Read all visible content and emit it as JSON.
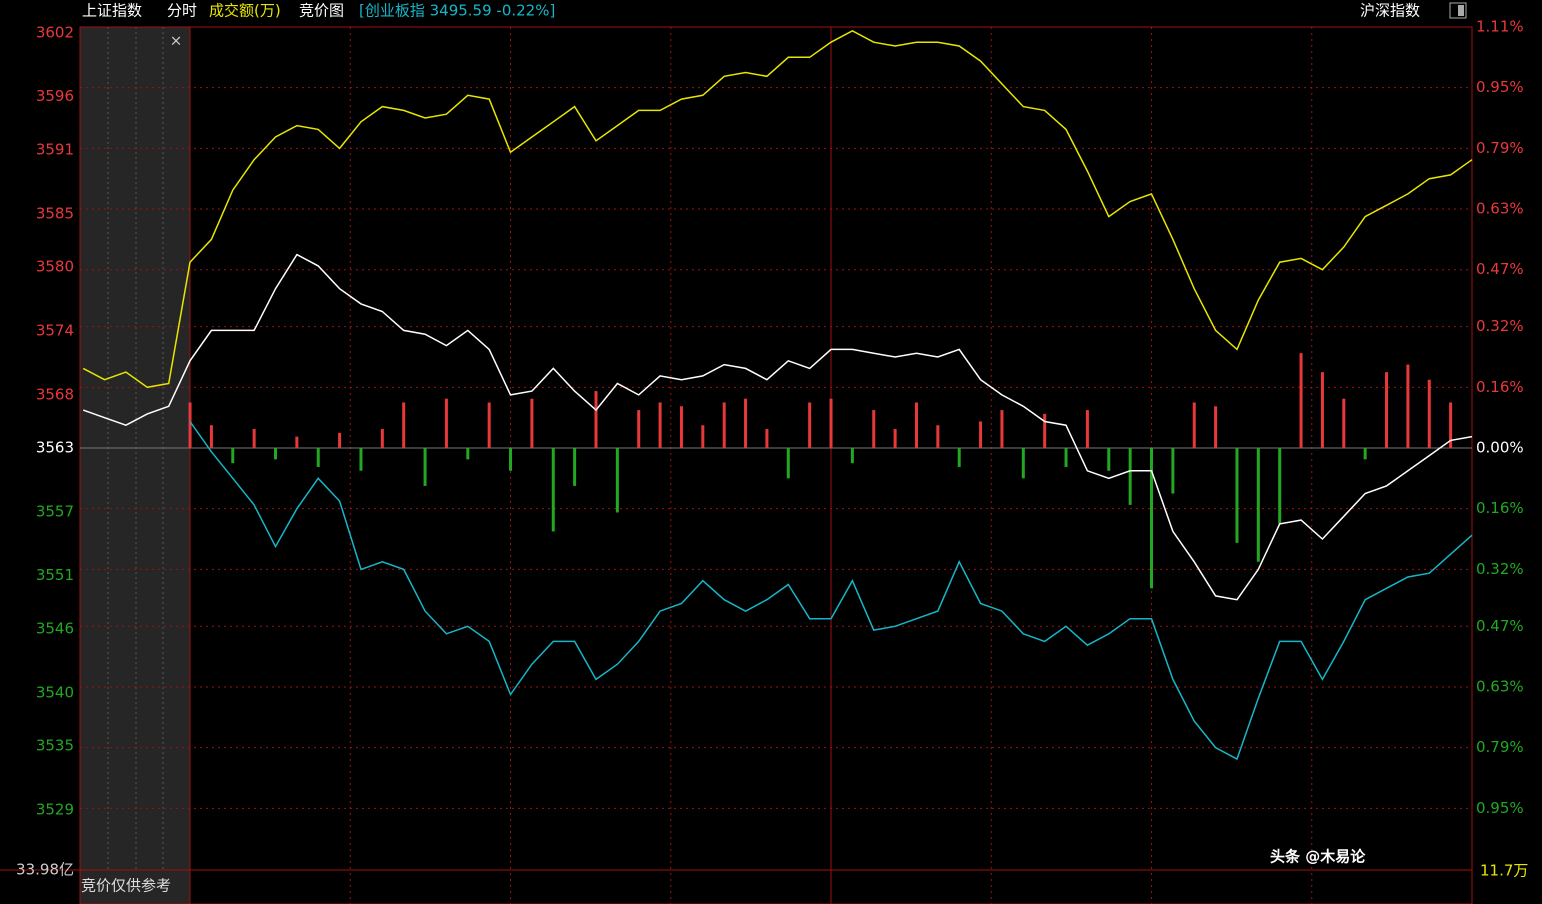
{
  "chart_data": {
    "type": "line",
    "header": {
      "index_name": "上证指数",
      "mode": "分时",
      "volume_label": "成交额(万)",
      "auction_label": "竞价图",
      "compare": "[创业板指 3495.59 -0.22%]",
      "switch": "沪深指数"
    },
    "volume_total": "33.98亿",
    "auction_note": "竞价仅供参考",
    "watermark": "头条 @木易论",
    "corner_label": "11.7万",
    "x": [
      -20,
      -16,
      -12,
      -8,
      -4,
      0,
      4,
      8,
      12,
      16,
      20,
      24,
      28,
      32,
      36,
      40,
      44,
      48,
      52,
      56,
      60,
      64,
      68,
      72,
      76,
      80,
      84,
      88,
      92,
      96,
      100,
      104,
      108,
      112,
      116,
      120,
      124,
      128,
      132,
      136,
      140,
      144,
      148,
      152,
      156,
      160,
      164,
      168,
      172,
      176,
      180,
      184,
      188,
      192,
      196,
      200,
      204,
      208,
      212,
      216,
      220,
      224,
      228,
      232,
      236,
      240
    ],
    "xlim": [
      -20.6,
      240
    ],
    "xticks": [
      30,
      60,
      90,
      120,
      150,
      180,
      210
    ],
    "ylim": [
      3523.45,
      3602.55
    ],
    "yticks": [
      3602,
      3596,
      3591,
      3585,
      3580,
      3574,
      3568,
      3563,
      3557,
      3551,
      3546,
      3540,
      3535,
      3529
    ],
    "y2lim": [
      -1.11,
      1.11
    ],
    "y2ticks": [
      {
        "value": 1.11,
        "label": "1.11%"
      },
      {
        "value": 0.95,
        "label": "0.95%"
      },
      {
        "value": 0.79,
        "label": "0.79%"
      },
      {
        "value": 0.63,
        "label": "0.63%"
      },
      {
        "value": 0.47,
        "label": "0.47%"
      },
      {
        "value": 0.32,
        "label": "0.32%"
      },
      {
        "value": 0.16,
        "label": "0.16%"
      },
      {
        "value": 0,
        "label": "0.00%"
      },
      {
        "value": -0.16,
        "label": "0.16%"
      },
      {
        "value": -0.32,
        "label": "0.32%"
      },
      {
        "value": -0.47,
        "label": "0.47%"
      },
      {
        "value": -0.63,
        "label": "0.63%"
      },
      {
        "value": -0.79,
        "label": "0.79%"
      },
      {
        "value": -0.95,
        "label": "0.95%"
      }
    ],
    "up_color": "#e8393a",
    "down_color": "#22a822",
    "series": [
      {
        "color": "#e6e600",
        "axis": "y2",
        "values": [
          0.21,
          0.18,
          0.2,
          0.16,
          0.17,
          0.49,
          0.55,
          0.68,
          0.76,
          0.82,
          0.85,
          0.84,
          0.79,
          0.86,
          0.9,
          0.89,
          0.87,
          0.88,
          0.93,
          0.92,
          0.78,
          0.82,
          0.86,
          0.9,
          0.81,
          0.85,
          0.89,
          0.89,
          0.92,
          0.93,
          0.98,
          0.99,
          0.98,
          1.03,
          1.03,
          1.07,
          1.1,
          1.07,
          1.06,
          1.07,
          1.07,
          1.06,
          1.02,
          0.96,
          0.9,
          0.89,
          0.84,
          0.73,
          0.61,
          0.65,
          0.67,
          0.55,
          0.42,
          0.31,
          0.26,
          0.39,
          0.49,
          0.5,
          0.47,
          0.53,
          0.61,
          0.64,
          0.67,
          0.71,
          0.72,
          0.76
        ]
      },
      {
        "color": "#ffffff",
        "axis": "y2",
        "values": [
          0.1,
          0.08,
          0.06,
          0.09,
          0.11,
          0.23,
          0.31,
          0.31,
          0.31,
          0.42,
          0.51,
          0.48,
          0.42,
          0.38,
          0.36,
          0.31,
          0.3,
          0.27,
          0.31,
          0.26,
          0.14,
          0.15,
          0.21,
          0.15,
          0.1,
          0.17,
          0.14,
          0.19,
          0.18,
          0.19,
          0.22,
          0.21,
          0.18,
          0.23,
          0.21,
          0.26,
          0.26,
          0.25,
          0.24,
          0.25,
          0.24,
          0.26,
          0.18,
          0.14,
          0.11,
          0.07,
          0.06,
          -0.06,
          -0.08,
          -0.06,
          -0.06,
          -0.22,
          -0.3,
          -0.39,
          -0.4,
          -0.32,
          -0.2,
          -0.19,
          -0.24,
          -0.18,
          -0.12,
          -0.1,
          -0.06,
          -0.02,
          0.02,
          0.03
        ]
      },
      {
        "color": "#16b6c8",
        "axis": "y2",
        "values": [
          null,
          null,
          null,
          null,
          null,
          0.07,
          -0.01,
          -0.08,
          -0.15,
          -0.26,
          -0.16,
          -0.08,
          -0.14,
          -0.32,
          -0.3,
          -0.32,
          -0.43,
          -0.49,
          -0.47,
          -0.51,
          -0.65,
          -0.57,
          -0.51,
          -0.51,
          -0.61,
          -0.57,
          -0.51,
          -0.43,
          -0.41,
          -0.35,
          -0.4,
          -0.43,
          -0.4,
          -0.36,
          -0.45,
          -0.45,
          -0.35,
          -0.48,
          -0.47,
          -0.45,
          -0.43,
          -0.3,
          -0.41,
          -0.43,
          -0.49,
          -0.51,
          -0.47,
          -0.52,
          -0.49,
          -0.45,
          -0.45,
          -0.61,
          -0.72,
          -0.79,
          -0.82,
          -0.66,
          -0.51,
          -0.51,
          -0.61,
          -0.51,
          -0.4,
          -0.37,
          -0.34,
          -0.33,
          -0.28,
          -0.23
        ]
      }
    ],
    "bars": {
      "axis": "y2",
      "values": [
        null,
        null,
        null,
        null,
        null,
        0.12,
        0.06,
        -0.04,
        0.05,
        -0.03,
        0.03,
        -0.05,
        0.04,
        -0.06,
        0.05,
        0.12,
        -0.1,
        0.13,
        -0.03,
        0.12,
        -0.06,
        0.13,
        -0.22,
        -0.1,
        0.15,
        -0.17,
        0.1,
        0.12,
        0.11,
        0.06,
        0.12,
        0.13,
        0.05,
        -0.08,
        0.12,
        0.13,
        -0.04,
        0.1,
        0.05,
        0.12,
        0.06,
        -0.05,
        0.07,
        0.1,
        -0.08,
        0.09,
        -0.05,
        0.1,
        -0.06,
        -0.15,
        -0.37,
        -0.12,
        0.12,
        0.11,
        -0.25,
        -0.3,
        -0.2,
        0.25,
        0.2,
        0.13,
        -0.03,
        0.2,
        0.22,
        0.18,
        0.12,
        null
      ]
    }
  }
}
